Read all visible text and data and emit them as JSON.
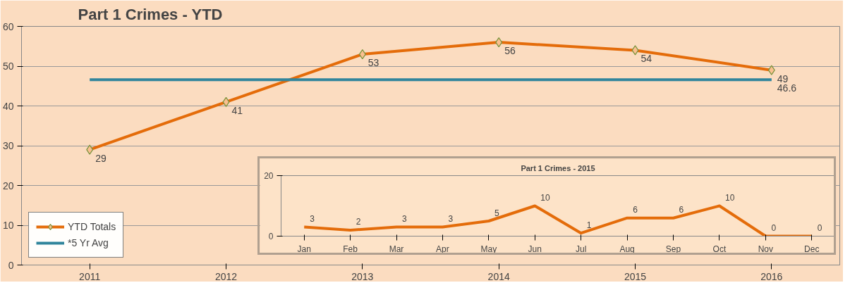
{
  "chart_data": [
    {
      "type": "line",
      "title": "Part 1 Crimes - YTD",
      "categories": [
        "2011",
        "2012",
        "2013",
        "2014",
        "2015",
        "2016"
      ],
      "series": [
        {
          "name": "YTD Totals",
          "color": "#e46c0a",
          "marker": "diamond",
          "values": [
            29,
            41,
            53,
            56,
            54,
            49
          ],
          "value_labels": [
            "29",
            "41",
            "53",
            "56",
            "54",
            "49"
          ]
        },
        {
          "name": "*5 Yr Avg",
          "color": "#31859c",
          "marker": "none",
          "values": [
            46.6,
            46.6,
            46.6,
            46.6,
            46.6,
            46.6
          ],
          "value_labels": [
            null,
            null,
            null,
            null,
            null,
            "46.6"
          ]
        }
      ],
      "ylim": [
        0,
        60
      ],
      "yticks": [
        0,
        10,
        20,
        30,
        40,
        50,
        60
      ],
      "grid": "y",
      "legend": "bottom left"
    },
    {
      "type": "line",
      "title": "Part 1 Crimes - 2015",
      "categories": [
        "Jan",
        "Feb",
        "Mar",
        "Apr",
        "May",
        "Jun",
        "Jul",
        "Aug",
        "Sep",
        "Oct",
        "Nov",
        "Dec"
      ],
      "series": [
        {
          "color": "#e46c0a",
          "values": [
            3,
            2,
            3,
            3,
            5,
            10,
            1,
            6,
            6,
            10,
            0,
            0
          ]
        }
      ],
      "ylim": [
        0,
        20
      ],
      "yticks": [
        0,
        20
      ],
      "data_labels": true
    }
  ]
}
